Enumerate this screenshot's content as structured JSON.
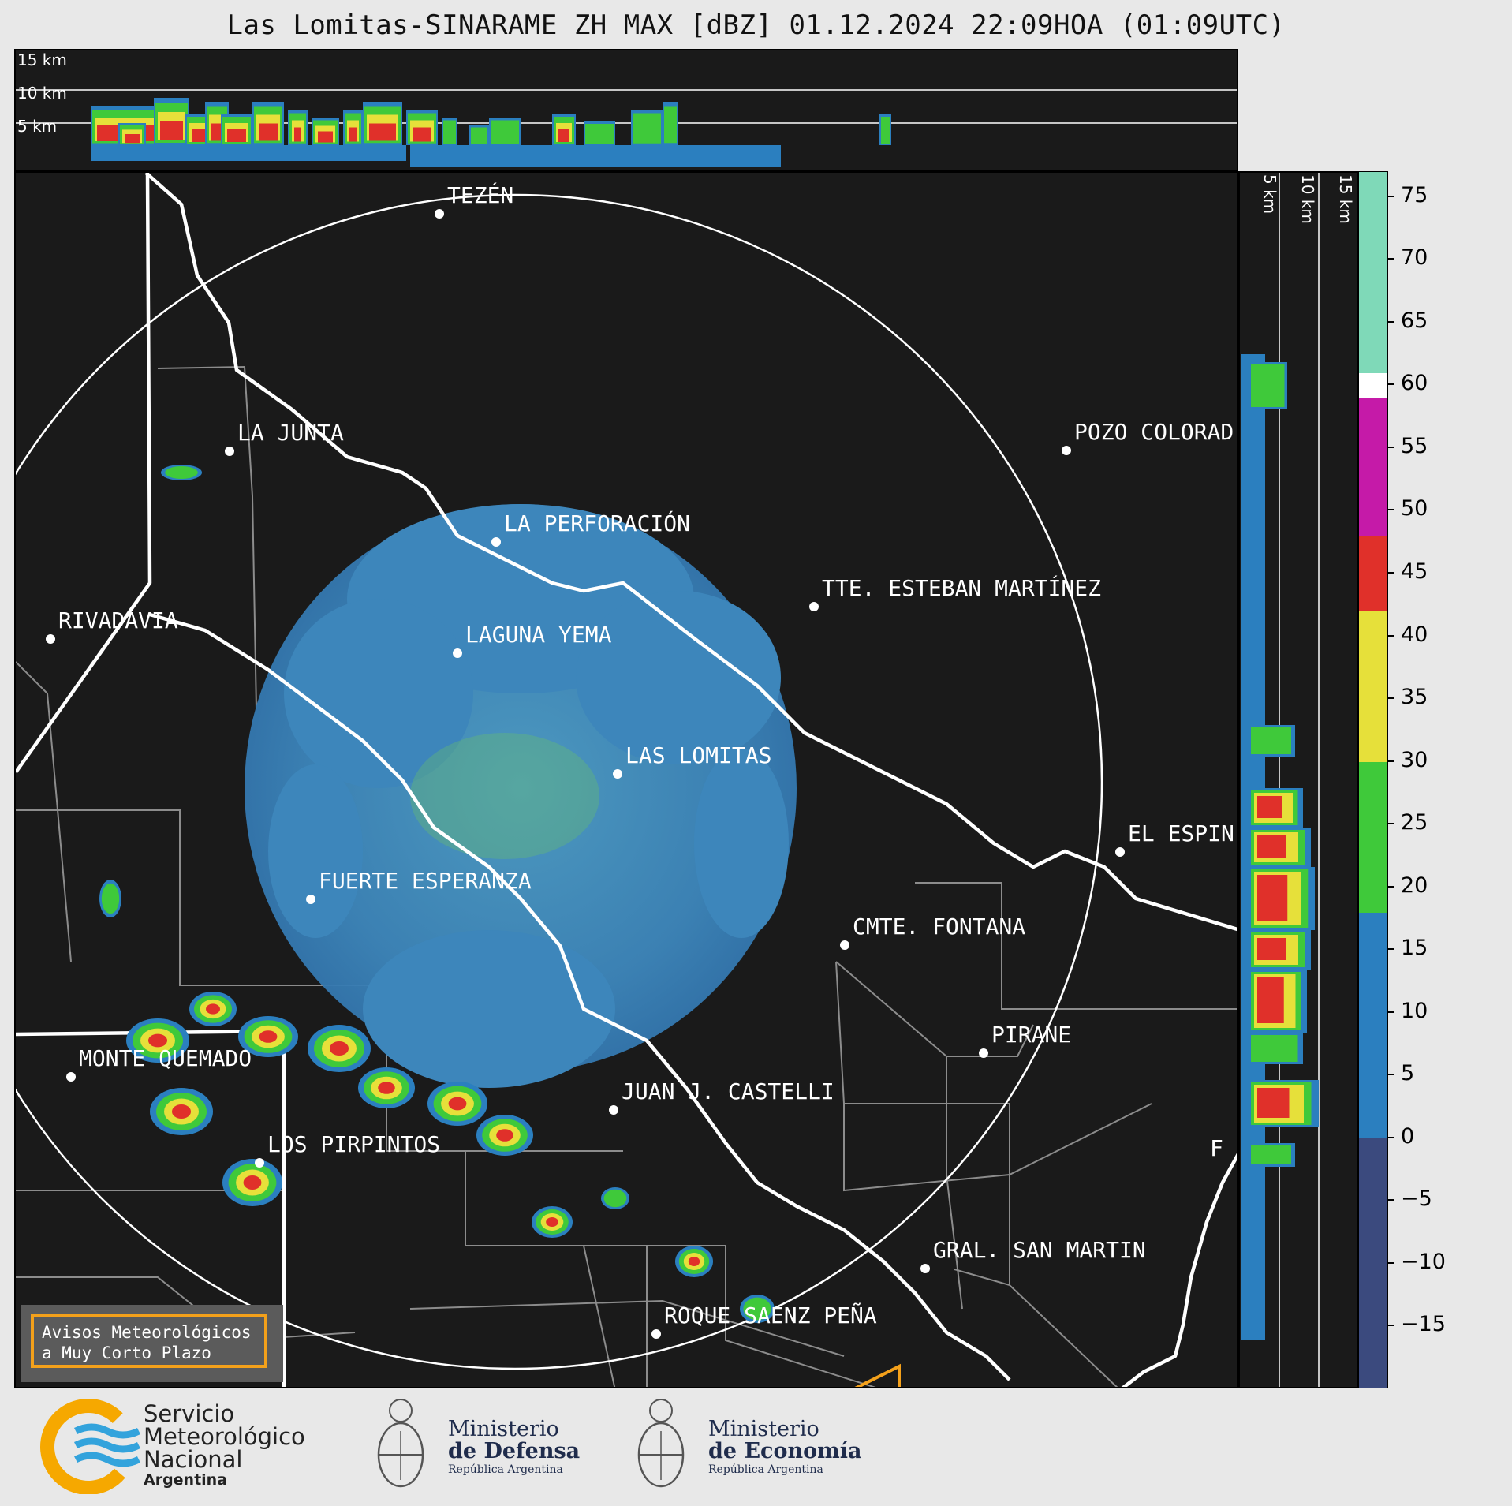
{
  "title": "Las Lomitas-SINARAME ZH MAX [dBZ] 01.12.2024 22:09HOA (01:09UTC)",
  "top_panel": {
    "height_labels": [
      "15 km",
      "10 km",
      "5 km"
    ]
  },
  "side_panel": {
    "height_labels": [
      "5 km",
      "10 km",
      "15 km"
    ]
  },
  "cities": [
    {
      "name": "TEZÉN"
    },
    {
      "name": "LA JUNTA"
    },
    {
      "name": "POZO COLORAD"
    },
    {
      "name": "LA PERFORACIÓN"
    },
    {
      "name": "TTE. ESTEBAN MARTÍNEZ"
    },
    {
      "name": "RIVADAVIA"
    },
    {
      "name": "LAGUNA YEMA"
    },
    {
      "name": "LAS LOMITAS"
    },
    {
      "name": "EL ESPIN"
    },
    {
      "name": "FUERTE ESPERANZA"
    },
    {
      "name": "CMTE. FONTANA"
    },
    {
      "name": "PIRANE"
    },
    {
      "name": "MONTE QUEMADO"
    },
    {
      "name": "JUAN J. CASTELLI"
    },
    {
      "name": "LOS PIRPINTOS"
    },
    {
      "name": "GRAL. SAN MARTIN"
    },
    {
      "name": "ROQUE SAENZ PEÑA"
    },
    {
      "name": "F"
    }
  ],
  "colorbar": {
    "unit": "dBZ",
    "range": [
      -20,
      77
    ],
    "tick_labels": [
      "75",
      "70",
      "65",
      "60",
      "55",
      "50",
      "45",
      "40",
      "35",
      "30",
      "25",
      "20",
      "15",
      "10",
      "5",
      "0",
      "−5",
      "−10",
      "−15"
    ],
    "colors": {
      "below_0": "#3b4a7e",
      "0_to_18": "#2b7fbf",
      "18_to_30": "#3fc93a",
      "30_to_42": "#e6e03a",
      "42_to_48": "#e0302a",
      "48_to_60": "#c51aa8",
      "60_to_77": "#7fd9b8"
    }
  },
  "avisos": {
    "line1": "Avisos Meteorológicos",
    "line2": "a Muy Corto Plazo"
  },
  "footer": {
    "smn": {
      "line1": "Servicio",
      "line2": "Meteorológico",
      "line3": "Nacional",
      "line4": "Argentina"
    },
    "defensa": {
      "line1": "Ministerio",
      "line2": "de Defensa",
      "line3": "República Argentina"
    },
    "economia": {
      "line1": "Ministerio",
      "line2": "de Economía",
      "line3": "República Argentina"
    }
  }
}
